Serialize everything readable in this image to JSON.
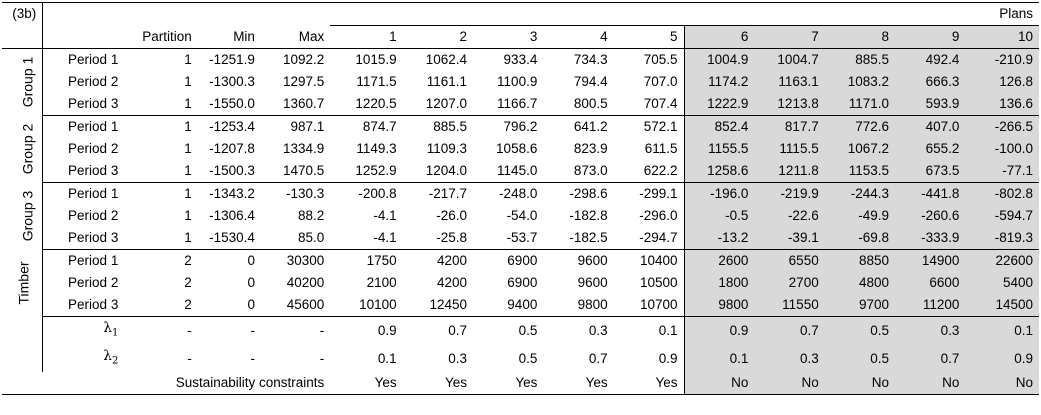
{
  "tag": "(3b)",
  "plans_label": "Plans",
  "headers": {
    "partition": "Partition",
    "min": "Min",
    "max": "Max",
    "plans": [
      "1",
      "2",
      "3",
      "4",
      "5",
      "6",
      "7",
      "8",
      "9",
      "10"
    ]
  },
  "groups": [
    {
      "name": "Group 1",
      "rows": [
        {
          "period": "Period 1",
          "partition": "1",
          "min": "-1251.9",
          "max": "1092.2",
          "values": [
            "1015.9",
            "1062.4",
            "933.4",
            "734.3",
            "705.5",
            "1004.9",
            "1004.7",
            "885.5",
            "492.4",
            "-210.9"
          ]
        },
        {
          "period": "Period 2",
          "partition": "1",
          "min": "-1300.3",
          "max": "1297.5",
          "values": [
            "1171.5",
            "1161.1",
            "1100.9",
            "794.4",
            "707.0",
            "1174.2",
            "1163.1",
            "1083.2",
            "666.3",
            "126.8"
          ]
        },
        {
          "period": "Period 3",
          "partition": "1",
          "min": "-1550.0",
          "max": "1360.7",
          "values": [
            "1220.5",
            "1207.0",
            "1166.7",
            "800.5",
            "707.4",
            "1222.9",
            "1213.8",
            "1171.0",
            "593.9",
            "136.6"
          ]
        }
      ]
    },
    {
      "name": "Group 2",
      "rows": [
        {
          "period": "Period 1",
          "partition": "1",
          "min": "-1253.4",
          "max": "987.1",
          "values": [
            "874.7",
            "885.5",
            "796.2",
            "641.2",
            "572.1",
            "852.4",
            "817.7",
            "772.6",
            "407.0",
            "-266.5"
          ]
        },
        {
          "period": "Period 2",
          "partition": "1",
          "min": "-1207.8",
          "max": "1334.9",
          "values": [
            "1149.3",
            "1109.3",
            "1058.6",
            "823.9",
            "611.5",
            "1155.5",
            "1115.5",
            "1067.2",
            "655.2",
            "-100.0"
          ]
        },
        {
          "period": "Period 3",
          "partition": "1",
          "min": "-1500.3",
          "max": "1470.5",
          "values": [
            "1252.9",
            "1204.0",
            "1145.0",
            "873.0",
            "622.2",
            "1258.6",
            "1211.8",
            "1153.5",
            "673.5",
            "-77.1"
          ]
        }
      ]
    },
    {
      "name": "Group 3",
      "rows": [
        {
          "period": "Period 1",
          "partition": "1",
          "min": "-1343.2",
          "max": "-130.3",
          "values": [
            "-200.8",
            "-217.7",
            "-248.0",
            "-298.6",
            "-299.1",
            "-196.0",
            "-219.9",
            "-244.3",
            "-441.8",
            "-802.8"
          ]
        },
        {
          "period": "Period 2",
          "partition": "1",
          "min": "-1306.4",
          "max": "88.2",
          "values": [
            "-4.1",
            "-26.0",
            "-54.0",
            "-182.8",
            "-296.0",
            "-0.5",
            "-22.6",
            "-49.9",
            "-260.6",
            "-594.7"
          ]
        },
        {
          "period": "Period 3",
          "partition": "1",
          "min": "-1530.4",
          "max": "85.0",
          "values": [
            "-4.1",
            "-25.8",
            "-53.7",
            "-182.5",
            "-294.7",
            "-13.2",
            "-39.1",
            "-69.8",
            "-333.9",
            "-819.3"
          ]
        }
      ]
    },
    {
      "name": "Timber",
      "rows": [
        {
          "period": "Period 1",
          "partition": "2",
          "min": "0",
          "max": "30300",
          "values": [
            "1750",
            "4200",
            "6900",
            "9600",
            "10400",
            "2600",
            "6550",
            "8850",
            "14900",
            "22600"
          ]
        },
        {
          "period": "Period 2",
          "partition": "2",
          "min": "0",
          "max": "40200",
          "values": [
            "2100",
            "4200",
            "6900",
            "9600",
            "10500",
            "1800",
            "2700",
            "4800",
            "6600",
            "5400"
          ]
        },
        {
          "period": "Period 3",
          "partition": "2",
          "min": "0",
          "max": "45600",
          "values": [
            "10100",
            "12450",
            "9400",
            "9800",
            "10700",
            "9800",
            "11550",
            "9700",
            "11200",
            "14500"
          ]
        }
      ]
    }
  ],
  "lambda1": {
    "symbol": "λ",
    "sub": "1",
    "partition": "-",
    "min": "-",
    "max": "-",
    "values": [
      "0.9",
      "0.7",
      "0.5",
      "0.3",
      "0.1",
      "0.9",
      "0.7",
      "0.5",
      "0.3",
      "0.1"
    ]
  },
  "lambda2": {
    "symbol": "λ",
    "sub": "2",
    "partition": "-",
    "min": "-",
    "max": "-",
    "values": [
      "0.1",
      "0.3",
      "0.5",
      "0.7",
      "0.9",
      "0.1",
      "0.3",
      "0.5",
      "0.7",
      "0.9"
    ]
  },
  "sustainability": {
    "label": "Sustainability constraints",
    "values": [
      "Yes",
      "Yes",
      "Yes",
      "Yes",
      "Yes",
      "No",
      "No",
      "No",
      "No",
      "No"
    ]
  }
}
